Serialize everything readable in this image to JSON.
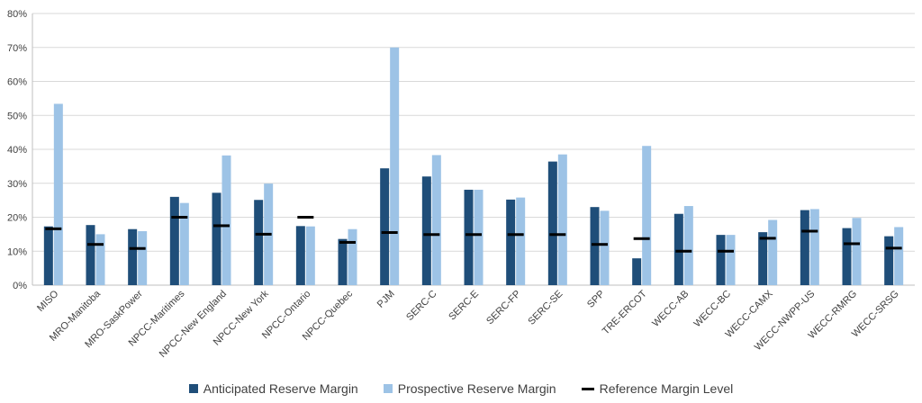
{
  "chart_data": {
    "type": "bar",
    "title": "",
    "xlabel": "",
    "ylabel": "",
    "ylim": [
      0,
      80
    ],
    "yticks": [
      "0%",
      "10%",
      "20%",
      "30%",
      "40%",
      "50%",
      "60%",
      "70%",
      "80%"
    ],
    "categories": [
      "MISO",
      "MRO-Manitoba",
      "MRO-SaskPower",
      "NPCC-Maritimes",
      "NPCC-New England",
      "NPCC-New York",
      "NPCC-Ontario",
      "NPCC-Quebec",
      "PJM",
      "SERC-C",
      "SERC-E",
      "SERC-FP",
      "SERC-SE",
      "SPP",
      "TRE-ERCOT",
      "WECC-AB",
      "WECC-BC",
      "WECC-CAMX",
      "WECC-NWPP-US",
      "WECC-RMRG",
      "WECC-SRSG"
    ],
    "series": [
      {
        "name": "Anticipated Reserve Margin",
        "kind": "bar",
        "color": "#1f4e79",
        "values": [
          17.3,
          17.7,
          16.5,
          26.0,
          27.2,
          25.1,
          17.4,
          13.6,
          34.4,
          32.0,
          28.1,
          25.2,
          36.4,
          23.0,
          7.9,
          21.0,
          14.8,
          15.6,
          22.1,
          16.8,
          14.4
        ]
      },
      {
        "name": "Prospective Reserve Margin",
        "kind": "bar",
        "color": "#9dc3e6",
        "values": [
          53.4,
          15.0,
          15.9,
          24.2,
          38.2,
          29.9,
          17.3,
          16.5,
          70.0,
          38.3,
          28.1,
          25.8,
          38.5,
          21.9,
          41.0,
          23.3,
          14.8,
          19.2,
          22.4,
          19.8,
          17.1
        ]
      },
      {
        "name": "Reference Margin Level",
        "kind": "marker",
        "color": "#000000",
        "values": [
          16.6,
          12.0,
          10.8,
          20.0,
          17.5,
          15.0,
          20.0,
          12.6,
          15.5,
          14.9,
          14.9,
          14.9,
          14.9,
          12.0,
          13.7,
          10.0,
          10.0,
          13.8,
          15.9,
          12.2,
          10.9
        ]
      }
    ],
    "grid": true,
    "legend_position": "bottom"
  }
}
